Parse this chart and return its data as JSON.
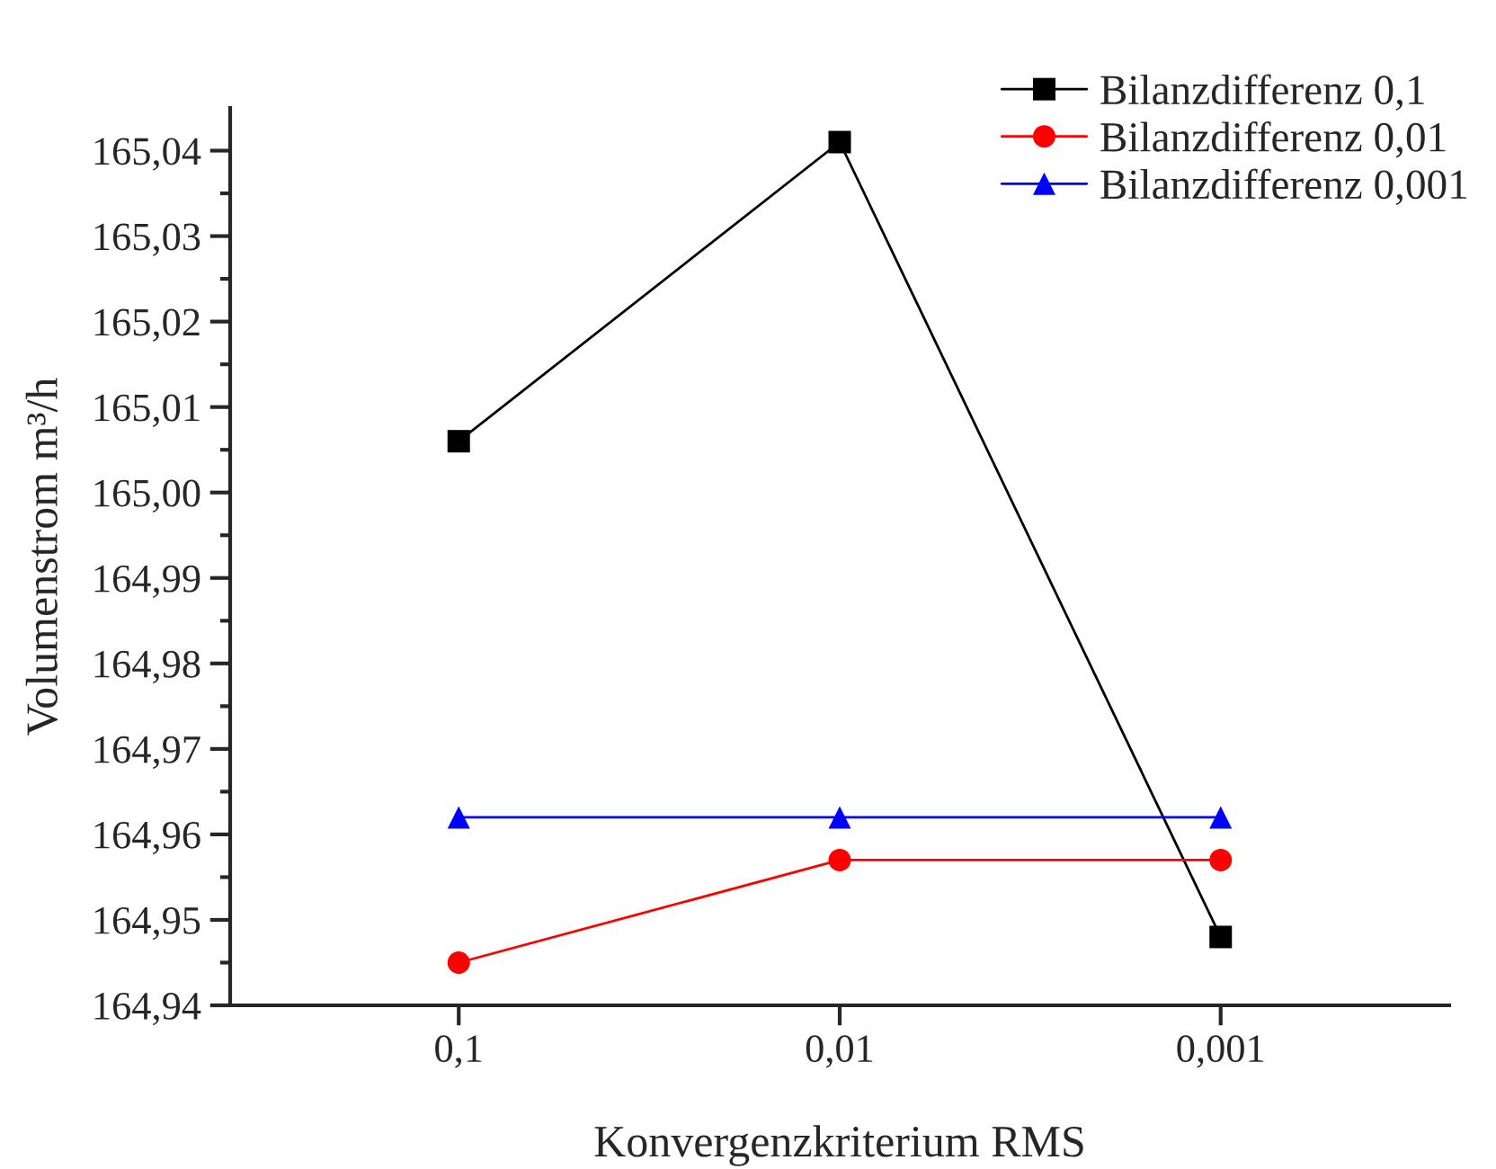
{
  "chart_data": {
    "type": "line",
    "xlabel": "Konvergenzkriterium RMS",
    "ylabel": "Volumenstrom m³/h",
    "categories": [
      "0,1",
      "0,01",
      "0,001"
    ],
    "series": [
      {
        "name": "Bilanzdifferenz 0,1",
        "color": "#000000",
        "marker": "square",
        "values": [
          165.006,
          165.041,
          164.948
        ]
      },
      {
        "name": "Bilanzdifferenz 0,01",
        "color": "#ff0000",
        "marker": "circle",
        "values": [
          164.945,
          164.957,
          164.957
        ]
      },
      {
        "name": "Bilanzdifferenz 0,001",
        "color": "#0000ff",
        "marker": "triangle",
        "values": [
          164.962,
          164.962,
          164.962
        ]
      }
    ],
    "ylim": [
      164.94,
      165.045
    ],
    "yticks": [
      {
        "value": 164.94,
        "label": "164,94"
      },
      {
        "value": 164.95,
        "label": "164,95"
      },
      {
        "value": 164.96,
        "label": "164,96"
      },
      {
        "value": 164.97,
        "label": "164,97"
      },
      {
        "value": 164.98,
        "label": "164,98"
      },
      {
        "value": 164.99,
        "label": "164,99"
      },
      {
        "value": 165.0,
        "label": "165,00"
      },
      {
        "value": 165.01,
        "label": "165,01"
      },
      {
        "value": 165.02,
        "label": "165,02"
      },
      {
        "value": 165.03,
        "label": "165,03"
      },
      {
        "value": 165.04,
        "label": "165,04"
      }
    ],
    "grid": false,
    "legend": "top right",
    "line_style": "solid"
  }
}
